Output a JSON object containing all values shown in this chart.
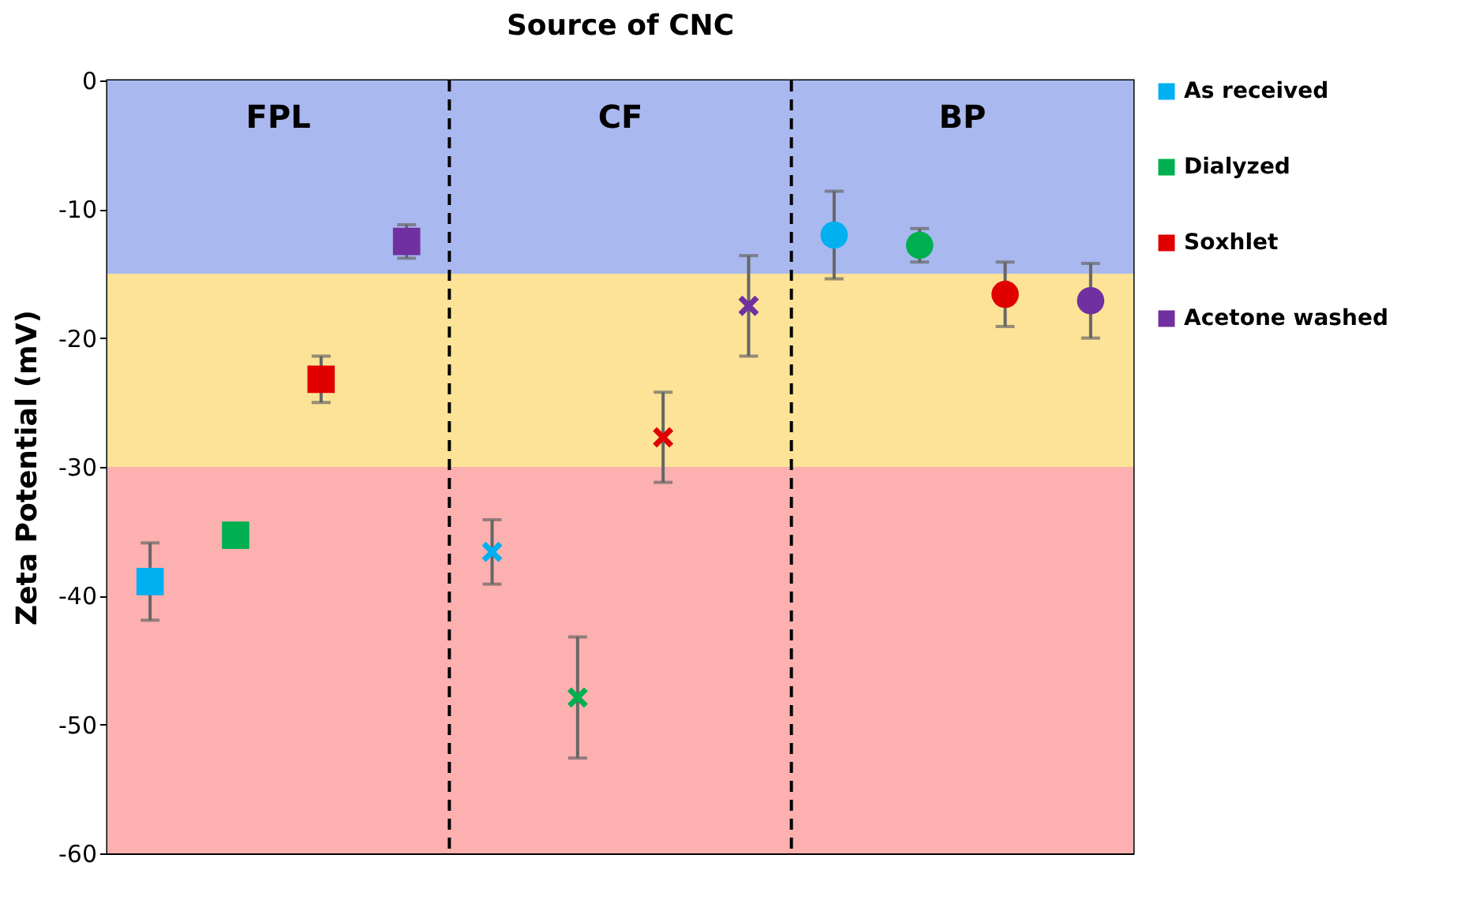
{
  "chart_data": {
    "type": "scatter",
    "title": "Source of CNC",
    "ylabel": "Zeta Potential (mV)",
    "categories": [
      null,
      null,
      null,
      null,
      null,
      null,
      null,
      null,
      null,
      null,
      null,
      null
    ],
    "ylim": [
      -60,
      0
    ],
    "yticks": [
      0,
      -10,
      -20,
      -30,
      -40,
      -50,
      -60
    ],
    "tick_labels": "y",
    "legend": "right",
    "series": [
      {
        "name": "As received",
        "marker": "square",
        "color": "#00b0f0",
        "values": [
          -38.9,
          null,
          null,
          null,
          null,
          null,
          null,
          null,
          null,
          null,
          null,
          null
        ],
        "errors": [
          3.0,
          null,
          null,
          null,
          null,
          null,
          null,
          null,
          null,
          null,
          null,
          null
        ]
      },
      {
        "name": "Dialyzed",
        "marker": "square",
        "color": "#00b050",
        "values": [
          null,
          -35.3,
          null,
          null,
          null,
          null,
          null,
          null,
          null,
          null,
          null,
          null
        ]
      },
      {
        "name": "Soxhlet",
        "marker": "square",
        "color": "#e00000",
        "values": [
          null,
          null,
          -23.2,
          null,
          null,
          null,
          null,
          null,
          null,
          null,
          null,
          null
        ],
        "errors": [
          null,
          null,
          1.8,
          null,
          null,
          null,
          null,
          null,
          null,
          null,
          null,
          null
        ]
      },
      {
        "name": "Acetone washed",
        "marker": "square",
        "color": "#7030a0",
        "values": [
          null,
          null,
          null,
          -12.5,
          null,
          null,
          null,
          null,
          null,
          null,
          null,
          null
        ],
        "errors": [
          null,
          null,
          null,
          1.3,
          null,
          null,
          null,
          null,
          null,
          null,
          null,
          null
        ]
      },
      {
        "marker": "cross",
        "color": "#00b0f0",
        "values": [
          null,
          null,
          null,
          null,
          -36.6,
          null,
          null,
          null,
          null,
          null,
          null,
          null
        ],
        "errors": [
          null,
          null,
          null,
          null,
          2.5,
          null,
          null,
          null,
          null,
          null,
          null,
          null
        ]
      },
      {
        "marker": "cross",
        "color": "#00b050",
        "values": [
          null,
          null,
          null,
          null,
          null,
          -47.9,
          null,
          null,
          null,
          null,
          null,
          null
        ],
        "errors": [
          null,
          null,
          null,
          null,
          null,
          4.7,
          null,
          null,
          null,
          null,
          null,
          null
        ]
      },
      {
        "marker": "cross",
        "color": "#e00000",
        "values": [
          null,
          null,
          null,
          null,
          null,
          null,
          -27.7,
          null,
          null,
          null,
          null,
          null
        ],
        "errors": [
          null,
          null,
          null,
          null,
          null,
          null,
          3.5,
          null,
          null,
          null,
          null,
          null
        ]
      },
      {
        "marker": "cross",
        "color": "#7030a0",
        "values": [
          null,
          null,
          null,
          null,
          null,
          null,
          null,
          -17.5,
          null,
          null,
          null,
          null
        ],
        "errors": [
          null,
          null,
          null,
          null,
          null,
          null,
          null,
          3.9,
          null,
          null,
          null,
          null
        ]
      },
      {
        "marker": "circle",
        "color": "#00b0f0",
        "values": [
          null,
          null,
          null,
          null,
          null,
          null,
          null,
          null,
          -12.0,
          null,
          null,
          null
        ],
        "errors": [
          null,
          null,
          null,
          null,
          null,
          null,
          null,
          null,
          3.4,
          null,
          null,
          null
        ]
      },
      {
        "marker": "circle",
        "color": "#00b050",
        "values": [
          null,
          null,
          null,
          null,
          null,
          null,
          null,
          null,
          null,
          -12.8,
          null,
          null
        ],
        "errors": [
          null,
          null,
          null,
          null,
          null,
          null,
          null,
          null,
          null,
          1.3,
          null,
          null
        ]
      },
      {
        "marker": "circle",
        "color": "#e00000",
        "values": [
          null,
          null,
          null,
          null,
          null,
          null,
          null,
          null,
          null,
          null,
          -16.6,
          null
        ],
        "errors": [
          null,
          null,
          null,
          null,
          null,
          null,
          null,
          null,
          null,
          null,
          2.5,
          null
        ]
      },
      {
        "marker": "circle",
        "color": "#7030a0",
        "values": [
          null,
          null,
          null,
          null,
          null,
          null,
          null,
          null,
          null,
          null,
          null,
          -17.1
        ],
        "errors": [
          null,
          null,
          null,
          null,
          null,
          null,
          null,
          null,
          null,
          null,
          null,
          2.9
        ]
      }
    ],
    "bands": [
      {
        "axis": "y",
        "from": -15,
        "to": 0,
        "color": "#aab8f0"
      },
      {
        "axis": "y",
        "from": -30,
        "to": -15,
        "color": "#fde397"
      },
      {
        "axis": "y",
        "from": -60,
        "to": -30,
        "color": "#fdb0b0"
      }
    ],
    "annotations": [
      "FPL",
      "CF",
      "BP"
    ]
  }
}
